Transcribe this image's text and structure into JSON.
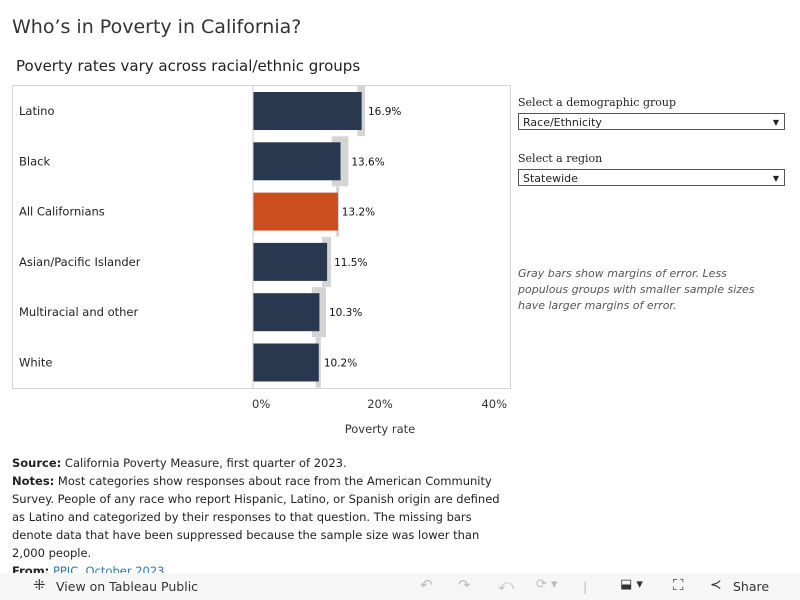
{
  "title": "Who’s in Poverty in California?",
  "subtitle": "Poverty rates vary across racial/ethnic groups",
  "chart_data": {
    "type": "bar",
    "orientation": "horizontal",
    "categories": [
      "Latino",
      "Black",
      "All Californians",
      "Asian/Pacific Islander",
      "Multiracial and other",
      "White"
    ],
    "values": [
      16.9,
      13.6,
      13.2,
      11.5,
      10.3,
      10.2
    ],
    "value_labels": [
      "16.9%",
      "13.6%",
      "13.2%",
      "11.5%",
      "10.3%",
      "10.2%"
    ],
    "margin_of_error": [
      0.6,
      1.3,
      0.2,
      0.7,
      1.1,
      0.4
    ],
    "highlight_category": "All Californians",
    "xlabel": "Poverty rate",
    "xlim": [
      0,
      40
    ],
    "xticks": [
      0,
      20,
      40
    ],
    "xtick_labels": [
      "0%",
      "20%",
      "40%"
    ],
    "colors": {
      "bar": "#29384f",
      "highlight": "#cb4f1e",
      "error": "#d4d4d4"
    }
  },
  "controls": {
    "group_label": "Select a demographic group",
    "group_value": "Race/Ethnicity",
    "region_label": "Select a region",
    "region_value": "Statewide"
  },
  "note": "Gray bars show margins of error.  Less populous groups with smaller sample sizes have larger margins of error.",
  "footer": {
    "source_label": "Source:",
    "source": " California Poverty Measure, first quarter of 2023.",
    "notes_label": "Notes:",
    "notes": " Most categories show responses about race from the American Community Survey. People of any race who report Hispanic, Latino, or Spanish origin are defined as Latino and categorized by their responses to that question. The missing bars denote data that have been suppressed because the sample size was lower than 2,000 people.",
    "from_label": "From:",
    "from_link": "PPIC, October 2023."
  },
  "toolbar": {
    "view_label": "View on Tableau Public",
    "share_label": "Share"
  }
}
